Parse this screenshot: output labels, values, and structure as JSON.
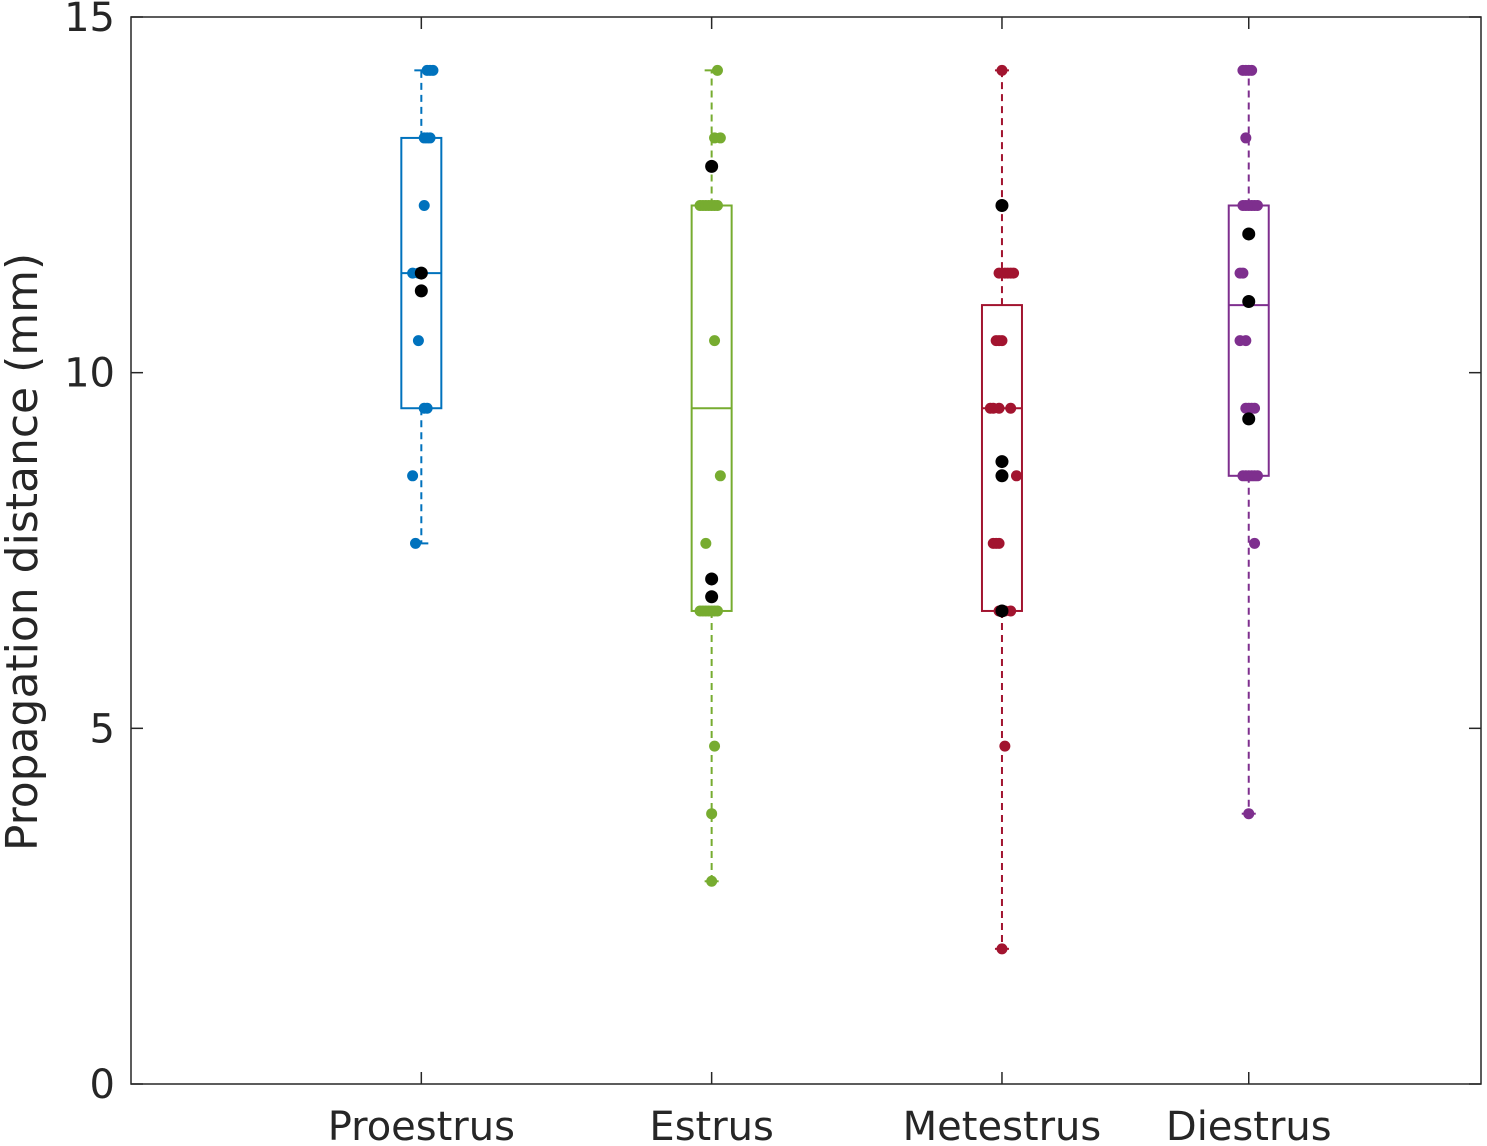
{
  "chart_data": {
    "type": "box",
    "ylabel": "Propagation distance (mm)",
    "xlabel": "",
    "title": "",
    "ylim": [
      0,
      15
    ],
    "yticks": [
      0,
      5,
      10,
      15
    ],
    "categories": [
      "Proestrus",
      "Estrus",
      "Metestrus",
      "Diestrus"
    ],
    "x_positions": [
      2,
      3,
      4,
      4.85
    ],
    "xlim": [
      1,
      5.65
    ],
    "grid": false,
    "highlight_color": "#000000",
    "groups": [
      {
        "name": "Proestrus",
        "color": "#0072BD",
        "box": {
          "q1": 9.5,
          "median": 11.4,
          "q3": 13.3,
          "whisker_low": 7.6,
          "whisker_high": 14.25
        },
        "points": [
          {
            "x": 2.02,
            "y": 14.25
          },
          {
            "x": 2.03,
            "y": 14.25
          },
          {
            "x": 2.04,
            "y": 14.25
          },
          {
            "x": 2.01,
            "y": 13.3
          },
          {
            "x": 2.02,
            "y": 13.3
          },
          {
            "x": 2.03,
            "y": 13.3
          },
          {
            "x": 2.01,
            "y": 12.35
          },
          {
            "x": 1.97,
            "y": 11.4
          },
          {
            "x": 1.99,
            "y": 11.4
          },
          {
            "x": 1.99,
            "y": 10.45
          },
          {
            "x": 2.01,
            "y": 9.5
          },
          {
            "x": 2.02,
            "y": 9.5
          },
          {
            "x": 1.97,
            "y": 8.55
          },
          {
            "x": 1.98,
            "y": 7.6
          }
        ],
        "highlight_points": [
          {
            "x": 2.0,
            "y": 11.4
          },
          {
            "x": 2.0,
            "y": 11.15
          }
        ]
      },
      {
        "name": "Estrus",
        "color": "#77AC30",
        "box": {
          "q1": 6.65,
          "median": 9.5,
          "q3": 12.35,
          "whisker_low": 2.85,
          "whisker_high": 14.25
        },
        "points": [
          {
            "x": 3.02,
            "y": 14.25
          },
          {
            "x": 3.01,
            "y": 13.3
          },
          {
            "x": 3.03,
            "y": 13.3
          },
          {
            "x": 2.96,
            "y": 12.35
          },
          {
            "x": 2.97,
            "y": 12.35
          },
          {
            "x": 2.98,
            "y": 12.35
          },
          {
            "x": 2.99,
            "y": 12.35
          },
          {
            "x": 3.0,
            "y": 12.35
          },
          {
            "x": 3.01,
            "y": 12.35
          },
          {
            "x": 3.02,
            "y": 12.35
          },
          {
            "x": 3.01,
            "y": 10.45
          },
          {
            "x": 3.03,
            "y": 8.55
          },
          {
            "x": 2.98,
            "y": 7.6
          },
          {
            "x": 2.96,
            "y": 6.65
          },
          {
            "x": 2.97,
            "y": 6.65
          },
          {
            "x": 2.98,
            "y": 6.65
          },
          {
            "x": 2.99,
            "y": 6.65
          },
          {
            "x": 3.0,
            "y": 6.65
          },
          {
            "x": 3.01,
            "y": 6.65
          },
          {
            "x": 3.02,
            "y": 6.65
          },
          {
            "x": 3.01,
            "y": 4.75
          },
          {
            "x": 3.0,
            "y": 3.8
          },
          {
            "x": 3.0,
            "y": 2.85
          }
        ],
        "highlight_points": [
          {
            "x": 3.0,
            "y": 12.9
          },
          {
            "x": 3.0,
            "y": 7.1
          },
          {
            "x": 3.0,
            "y": 6.85
          }
        ]
      },
      {
        "name": "Metestrus",
        "color": "#A2142F",
        "box": {
          "q1": 6.65,
          "median": 9.5,
          "q3": 10.95,
          "whisker_low": 1.9,
          "whisker_high": 14.25
        },
        "points": [
          {
            "x": 4.0,
            "y": 14.25
          },
          {
            "x": 4.0,
            "y": 12.35
          },
          {
            "x": 3.99,
            "y": 11.4
          },
          {
            "x": 4.01,
            "y": 11.4
          },
          {
            "x": 4.02,
            "y": 11.4
          },
          {
            "x": 4.03,
            "y": 11.4
          },
          {
            "x": 4.04,
            "y": 11.4
          },
          {
            "x": 3.98,
            "y": 10.45
          },
          {
            "x": 3.99,
            "y": 10.45
          },
          {
            "x": 4.0,
            "y": 10.45
          },
          {
            "x": 3.96,
            "y": 9.5
          },
          {
            "x": 3.97,
            "y": 9.5
          },
          {
            "x": 3.99,
            "y": 9.5
          },
          {
            "x": 4.03,
            "y": 9.5
          },
          {
            "x": 4.05,
            "y": 8.55
          },
          {
            "x": 3.97,
            "y": 7.6
          },
          {
            "x": 3.98,
            "y": 7.6
          },
          {
            "x": 3.99,
            "y": 7.6
          },
          {
            "x": 3.99,
            "y": 6.65
          },
          {
            "x": 4.01,
            "y": 6.65
          },
          {
            "x": 4.03,
            "y": 6.65
          },
          {
            "x": 4.01,
            "y": 4.75
          },
          {
            "x": 4.0,
            "y": 1.9
          }
        ],
        "highlight_points": [
          {
            "x": 4.0,
            "y": 12.35
          },
          {
            "x": 4.0,
            "y": 8.75
          },
          {
            "x": 4.0,
            "y": 8.55
          },
          {
            "x": 4.0,
            "y": 6.65
          }
        ]
      },
      {
        "name": "Diestrus",
        "color": "#7E2F8E",
        "box": {
          "q1": 8.55,
          "median": 10.95,
          "q3": 12.35,
          "whisker_low": 3.8,
          "whisker_high": 14.25
        },
        "points": [
          {
            "x": 4.83,
            "y": 14.25
          },
          {
            "x": 4.84,
            "y": 14.25
          },
          {
            "x": 4.85,
            "y": 14.25
          },
          {
            "x": 4.86,
            "y": 14.25
          },
          {
            "x": 4.84,
            "y": 13.3
          },
          {
            "x": 4.83,
            "y": 12.35
          },
          {
            "x": 4.84,
            "y": 12.35
          },
          {
            "x": 4.85,
            "y": 12.35
          },
          {
            "x": 4.86,
            "y": 12.35
          },
          {
            "x": 4.87,
            "y": 12.35
          },
          {
            "x": 4.88,
            "y": 12.35
          },
          {
            "x": 4.82,
            "y": 11.4
          },
          {
            "x": 4.83,
            "y": 11.4
          },
          {
            "x": 4.82,
            "y": 10.45
          },
          {
            "x": 4.84,
            "y": 10.45
          },
          {
            "x": 4.84,
            "y": 9.5
          },
          {
            "x": 4.85,
            "y": 9.5
          },
          {
            "x": 4.86,
            "y": 9.5
          },
          {
            "x": 4.87,
            "y": 9.5
          },
          {
            "x": 4.83,
            "y": 8.55
          },
          {
            "x": 4.84,
            "y": 8.55
          },
          {
            "x": 4.85,
            "y": 8.55
          },
          {
            "x": 4.86,
            "y": 8.55
          },
          {
            "x": 4.87,
            "y": 8.55
          },
          {
            "x": 4.88,
            "y": 8.55
          },
          {
            "x": 4.87,
            "y": 7.6
          },
          {
            "x": 4.85,
            "y": 3.8
          }
        ],
        "highlight_points": [
          {
            "x": 4.85,
            "y": 11.95
          },
          {
            "x": 4.85,
            "y": 11.0
          },
          {
            "x": 4.85,
            "y": 9.35
          }
        ]
      }
    ]
  }
}
